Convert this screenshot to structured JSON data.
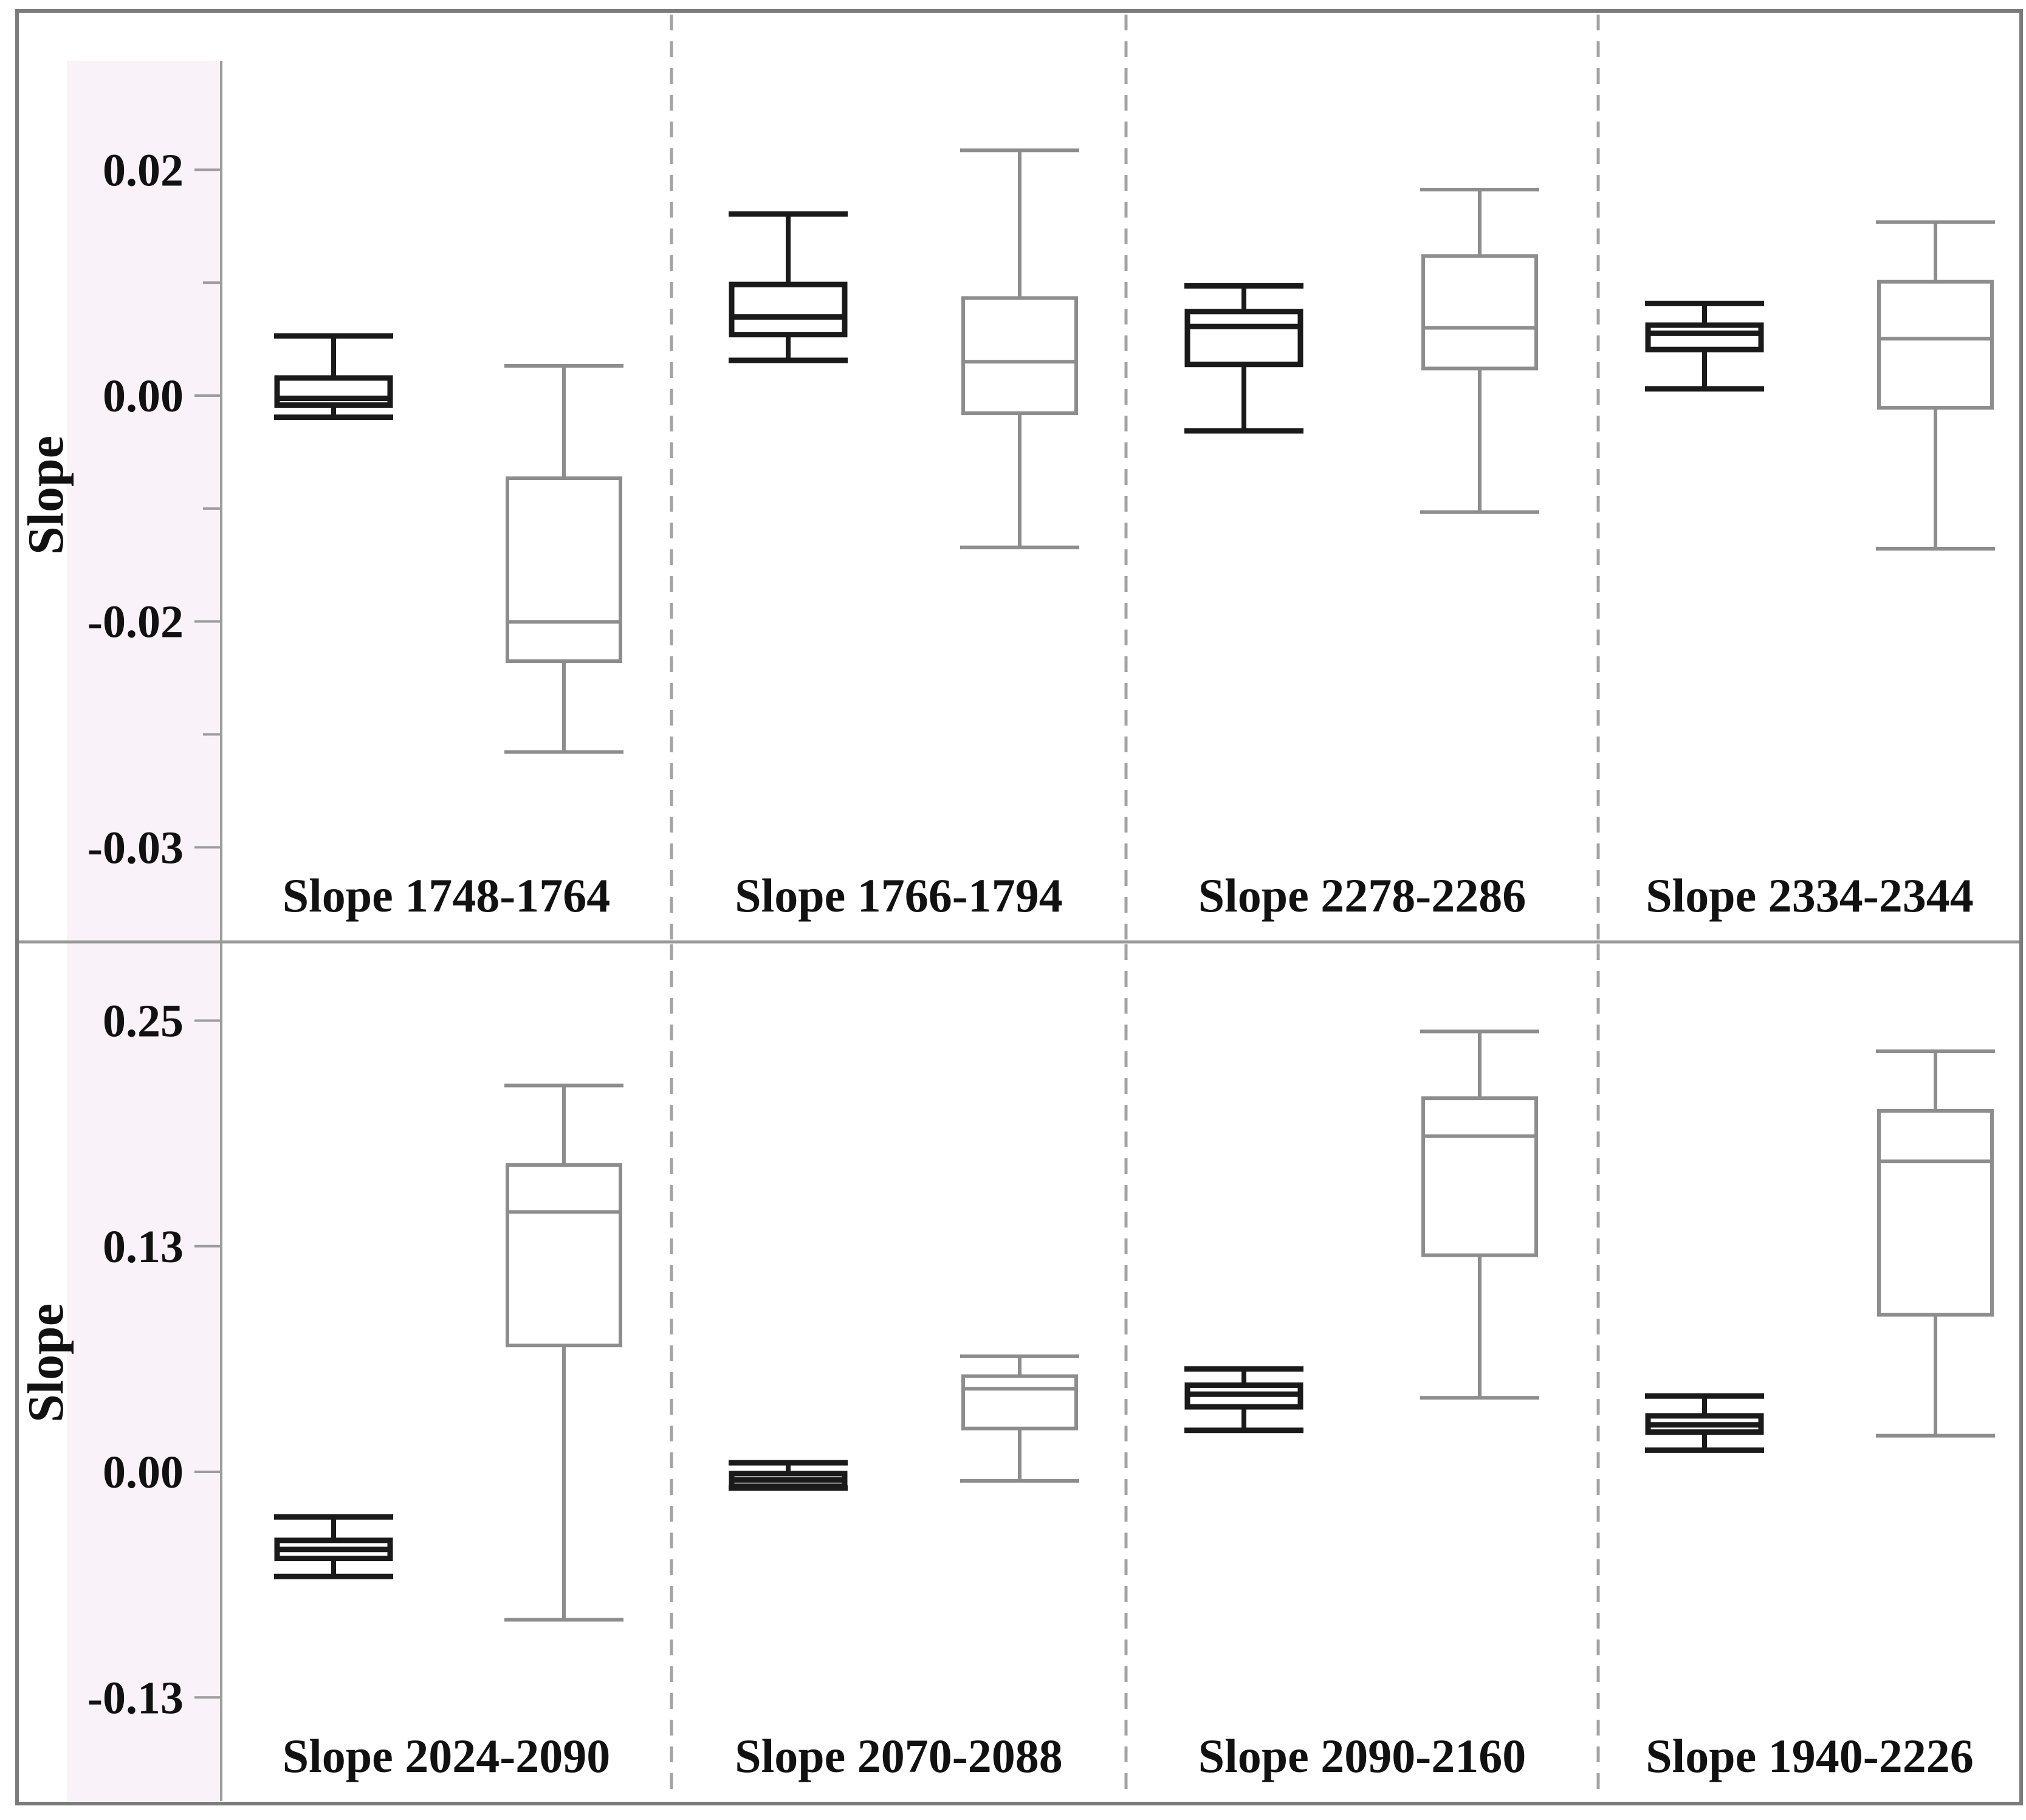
{
  "figure": {
    "background_color": "#ffffff",
    "border_color": "#7b7b7b",
    "axis_band_color": "#f9f2f9",
    "axis_line_color": "#9c9c9c",
    "grid_divider_color": "#9a9a9a",
    "panel_divider_color": "#a3a3a3",
    "dark_series_color": "#1a1a1a",
    "gray_series_color": "#8d8d8d",
    "text_color": "#111111"
  },
  "chart_data": [
    {
      "type": "boxplot",
      "ylabel": "Slope",
      "ylim": [
        -0.0345,
        0.0275
      ],
      "grid": false,
      "legend": "none",
      "yticks": [
        {
          "label": "0.02",
          "value": 0.016667,
          "major": true
        },
        {
          "label": "",
          "value": 0.008333,
          "major": false
        },
        {
          "label": "0.00",
          "value": 0.0,
          "major": true
        },
        {
          "label": "",
          "value": -0.008333,
          "major": false
        },
        {
          "label": "-0.02",
          "value": -0.016667,
          "major": true
        },
        {
          "label": "",
          "value": -0.025,
          "major": false
        },
        {
          "label": "-0.03",
          "value": -0.033333,
          "major": true
        }
      ],
      "panels": [
        {
          "label": "Slope 1748-1764",
          "series": [
            {
              "name": "dark",
              "low": -0.0016,
              "q1": -0.0007,
              "median": -0.0002,
              "q3": 0.0013,
              "high": 0.0044
            },
            {
              "name": "gray",
              "low": -0.0263,
              "q1": -0.0196,
              "median": -0.0167,
              "q3": -0.0061,
              "high": 0.0022
            }
          ]
        },
        {
          "label": "Slope 1766-1794",
          "series": [
            {
              "name": "dark",
              "low": 0.0026,
              "q1": 0.0045,
              "median": 0.0058,
              "q3": 0.0082,
              "high": 0.0134
            },
            {
              "name": "gray",
              "low": -0.0112,
              "q1": -0.0013,
              "median": 0.0025,
              "q3": 0.0072,
              "high": 0.0181
            }
          ]
        },
        {
          "label": "Slope 2278-2286",
          "series": [
            {
              "name": "dark",
              "low": -0.0026,
              "q1": 0.0023,
              "median": 0.0051,
              "q3": 0.0062,
              "high": 0.0081
            },
            {
              "name": "gray",
              "low": -0.0086,
              "q1": 0.002,
              "median": 0.005,
              "q3": 0.0103,
              "high": 0.0152
            }
          ]
        },
        {
          "label": "Slope 2334-2344",
          "series": [
            {
              "name": "dark",
              "low": 0.0005,
              "q1": 0.0034,
              "median": 0.0046,
              "q3": 0.0052,
              "high": 0.0068
            },
            {
              "name": "gray",
              "low": -0.0113,
              "q1": -0.0009,
              "median": 0.0042,
              "q3": 0.0084,
              "high": 0.0128
            }
          ]
        }
      ]
    },
    {
      "type": "boxplot",
      "ylabel": "Slope",
      "ylim": [
        -0.146,
        0.284
      ],
      "grid": false,
      "legend": "none",
      "yticks": [
        {
          "label": "0.25",
          "value": 0.25,
          "major": true
        },
        {
          "label": "0.13",
          "value": 0.125,
          "major": true
        },
        {
          "label": "0.00",
          "value": 0.0,
          "major": true
        },
        {
          "label": "-0.13",
          "value": -0.125,
          "major": true
        }
      ],
      "panels": [
        {
          "label": "Slope 2024-2090",
          "series": [
            {
              "name": "dark",
              "low": -0.058,
              "q1": -0.048,
              "median": -0.043,
              "q3": -0.038,
              "high": -0.025
            },
            {
              "name": "gray",
              "low": -0.082,
              "q1": 0.07,
              "median": 0.144,
              "q3": 0.17,
              "high": 0.214
            }
          ]
        },
        {
          "label": "Slope 2070-2088",
          "series": [
            {
              "name": "dark",
              "low": -0.009,
              "q1": -0.008,
              "median": -0.0045,
              "q3": -0.001,
              "high": 0.005
            },
            {
              "name": "gray",
              "low": -0.005,
              "q1": 0.024,
              "median": 0.046,
              "q3": 0.053,
              "high": 0.064
            }
          ]
        },
        {
          "label": "Slope 2090-2160",
          "series": [
            {
              "name": "dark",
              "low": 0.023,
              "q1": 0.036,
              "median": 0.043,
              "q3": 0.048,
              "high": 0.057
            },
            {
              "name": "gray",
              "low": 0.041,
              "q1": 0.12,
              "median": 0.186,
              "q3": 0.207,
              "high": 0.244
            }
          ]
        },
        {
          "label": "Slope 1940-2226",
          "series": [
            {
              "name": "dark",
              "low": 0.012,
              "q1": 0.022,
              "median": 0.026,
              "q3": 0.031,
              "high": 0.042
            },
            {
              "name": "gray",
              "low": 0.02,
              "q1": 0.087,
              "median": 0.172,
              "q3": 0.2,
              "high": 0.233
            }
          ]
        }
      ]
    }
  ]
}
